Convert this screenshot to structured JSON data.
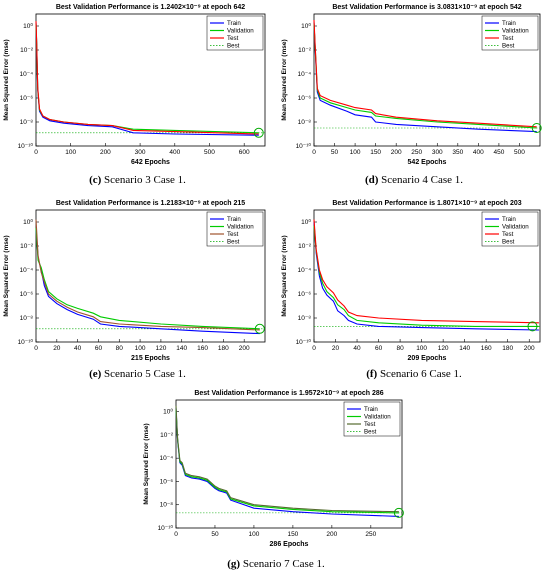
{
  "panels": [
    {
      "caption_letter": "(c)",
      "caption_text": " Scenario 3 Case 1.",
      "chart": {
        "type": "line",
        "title": "Best Validation Performance is 1.2402×10⁻⁹ at epoch 642",
        "xlabel": "642 Epochs",
        "ylabel": "Mean Squared Error  (mse)",
        "xlim": [
          0,
          660
        ],
        "xticks": [
          0,
          100,
          200,
          300,
          400,
          500,
          600
        ],
        "ylim_exp": [
          -10,
          1
        ],
        "ytick_exps": [
          0,
          -2,
          -4,
          -6,
          -8,
          -10
        ],
        "grid": false,
        "legend": "top-right",
        "best_point": {
          "x": 642,
          "y_exp": -8.9
        },
        "series": [
          {
            "name": "Train",
            "color": "#0000ff",
            "x": [
              0,
              2,
              5,
              10,
              20,
              40,
              80,
              150,
              220,
              280,
              400,
              642
            ],
            "y_exp": [
              0.3,
              -1.6,
              -5.3,
              -7.1,
              -7.6,
              -7.9,
              -8.1,
              -8.3,
              -8.4,
              -8.9,
              -9.0,
              -9.1
            ]
          },
          {
            "name": "Validation",
            "color": "#00cc00",
            "x": [
              0,
              2,
              5,
              10,
              20,
              40,
              80,
              150,
              220,
              280,
              400,
              642
            ],
            "y_exp": [
              0.2,
              -1.5,
              -5.2,
              -7.0,
              -7.5,
              -7.8,
              -8.0,
              -8.2,
              -8.3,
              -8.6,
              -8.7,
              -8.9
            ]
          },
          {
            "name": "Test",
            "color": "#ff0000",
            "x": [
              0,
              2,
              5,
              10,
              20,
              40,
              80,
              150,
              220,
              280,
              400,
              642
            ],
            "y_exp": [
              0.4,
              -1.4,
              -5.1,
              -6.9,
              -7.5,
              -7.8,
              -8.0,
              -8.2,
              -8.3,
              -8.7,
              -8.8,
              -9.0
            ]
          }
        ],
        "legend_entries": [
          "Train",
          "Validation",
          "Test",
          "Best"
        ]
      }
    },
    {
      "caption_letter": "(d)",
      "caption_text": " Scenario 4 Case 1.",
      "chart": {
        "type": "line",
        "title": "Best Validation Performance is 3.0831×10⁻⁹ at epoch 542",
        "xlabel": "542 Epochs",
        "ylabel": "Mean Squared Error  (mse)",
        "xlim": [
          0,
          550
        ],
        "xticks": [
          0,
          50,
          100,
          150,
          200,
          250,
          300,
          350,
          400,
          450,
          500
        ],
        "ylim_exp": [
          -10,
          1
        ],
        "ytick_exps": [
          0,
          -2,
          -4,
          -6,
          -8,
          -10
        ],
        "grid": false,
        "legend": "top-right",
        "best_point": {
          "x": 542,
          "y_exp": -8.5
        },
        "series": [
          {
            "name": "Train",
            "color": "#0000ff",
            "x": [
              0,
              3,
              8,
              15,
              40,
              80,
              100,
              140,
              150,
              200,
              300,
              400,
              542
            ],
            "y_exp": [
              0.3,
              -2.0,
              -5.5,
              -6.2,
              -6.6,
              -7.1,
              -7.4,
              -7.6,
              -8.0,
              -8.2,
              -8.4,
              -8.6,
              -8.8
            ]
          },
          {
            "name": "Validation",
            "color": "#00cc00",
            "x": [
              0,
              3,
              8,
              15,
              40,
              80,
              100,
              140,
              150,
              200,
              300,
              400,
              542
            ],
            "y_exp": [
              0.2,
              -1.8,
              -5.3,
              -6.0,
              -6.4,
              -6.8,
              -7.0,
              -7.2,
              -7.5,
              -7.7,
              -8.0,
              -8.2,
              -8.5
            ]
          },
          {
            "name": "Test",
            "color": "#ff0000",
            "x": [
              0,
              3,
              8,
              15,
              40,
              80,
              100,
              140,
              150,
              200,
              300,
              400,
              542
            ],
            "y_exp": [
              0.5,
              -1.7,
              -5.2,
              -5.8,
              -6.2,
              -6.6,
              -6.8,
              -7.0,
              -7.3,
              -7.6,
              -7.9,
              -8.1,
              -8.4
            ]
          }
        ],
        "legend_entries": [
          "Train",
          "Validation",
          "Test",
          "Best"
        ]
      }
    },
    {
      "caption_letter": "(e)",
      "caption_text": " Scenario 5 Case 1.",
      "chart": {
        "type": "line",
        "title": "Best Validation Performance is 1.2183×10⁻⁹ at epoch 215",
        "xlabel": "215 Epochs",
        "ylabel": "Mean Squared Error  (mse)",
        "xlim": [
          0,
          220
        ],
        "xticks": [
          0,
          20,
          40,
          60,
          80,
          100,
          120,
          140,
          160,
          180,
          200
        ],
        "ylim_exp": [
          -10,
          1
        ],
        "ytick_exps": [
          0,
          -2,
          -4,
          -6,
          -8,
          -10
        ],
        "grid": false,
        "legend": "top-right",
        "best_point": {
          "x": 215,
          "y_exp": -8.9
        },
        "series": [
          {
            "name": "Train",
            "color": "#0000ff",
            "x": [
              0,
              2,
              5,
              8,
              12,
              20,
              30,
              40,
              55,
              62,
              80,
              120,
              160,
              215
            ],
            "y_exp": [
              -0.5,
              -3.0,
              -4.0,
              -5.3,
              -6.2,
              -6.8,
              -7.3,
              -7.7,
              -8.1,
              -8.5,
              -8.7,
              -8.9,
              -9.1,
              -9.3
            ]
          },
          {
            "name": "Validation",
            "color": "#00cc00",
            "x": [
              0,
              2,
              5,
              8,
              12,
              20,
              30,
              40,
              55,
              62,
              80,
              120,
              160,
              215
            ],
            "y_exp": [
              -0.5,
              -3.2,
              -3.8,
              -4.8,
              -5.8,
              -6.4,
              -6.9,
              -7.2,
              -7.6,
              -7.9,
              -8.2,
              -8.5,
              -8.7,
              -8.9
            ]
          },
          {
            "name": "Test",
            "color": "#a0522d",
            "x": [
              0,
              2,
              5,
              8,
              12,
              20,
              30,
              40,
              55,
              62,
              80,
              120,
              160,
              215
            ],
            "y_exp": [
              0.2,
              -2.8,
              -4.2,
              -5.0,
              -6.0,
              -6.6,
              -7.1,
              -7.5,
              -7.9,
              -8.3,
              -8.5,
              -8.7,
              -8.8,
              -9.0
            ]
          }
        ],
        "legend_entries": [
          "Train",
          "Validation",
          "Test",
          "Best"
        ]
      }
    },
    {
      "caption_letter": "(f)",
      "caption_text": " Scenario 6 Case 1.",
      "chart": {
        "type": "line",
        "title": "Best Validation Performance is 1.8071×10⁻⁹ at epoch 203",
        "xlabel": "209 Epochs",
        "ylabel": "Mean Squared Error  (mse)",
        "xlim": [
          0,
          210
        ],
        "xticks": [
          0,
          20,
          40,
          60,
          80,
          100,
          120,
          140,
          160,
          180,
          200
        ],
        "ylim_exp": [
          -10,
          1
        ],
        "ytick_exps": [
          0,
          -2,
          -4,
          -6,
          -8,
          -10
        ],
        "grid": false,
        "legend": "top-right",
        "best_point": {
          "x": 203,
          "y_exp": -8.7
        },
        "series": [
          {
            "name": "Train",
            "color": "#0000ff",
            "x": [
              0,
              2,
              5,
              8,
              12,
              18,
              22,
              28,
              32,
              40,
              60,
              100,
              150,
              209
            ],
            "y_exp": [
              0.0,
              -2.6,
              -4.5,
              -5.5,
              -6.1,
              -6.6,
              -7.4,
              -7.8,
              -8.2,
              -8.5,
              -8.7,
              -8.8,
              -8.9,
              -9.0
            ]
          },
          {
            "name": "Validation",
            "color": "#00cc00",
            "x": [
              0,
              2,
              5,
              8,
              12,
              18,
              22,
              28,
              32,
              40,
              60,
              100,
              150,
              209
            ],
            "y_exp": [
              -0.3,
              -2.4,
              -4.2,
              -5.1,
              -5.8,
              -6.3,
              -6.9,
              -7.3,
              -7.8,
              -8.2,
              -8.4,
              -8.6,
              -8.7,
              -8.7
            ]
          },
          {
            "name": "Test",
            "color": "#ff0000",
            "x": [
              0,
              2,
              5,
              8,
              12,
              18,
              22,
              28,
              32,
              40,
              60,
              100,
              150,
              209
            ],
            "y_exp": [
              0.2,
              -2.3,
              -4.0,
              -4.8,
              -5.4,
              -5.9,
              -6.5,
              -7.0,
              -7.5,
              -7.8,
              -8.0,
              -8.2,
              -8.3,
              -8.4
            ]
          }
        ],
        "legend_entries": [
          "Train",
          "Validation",
          "Test",
          "Best"
        ]
      }
    },
    {
      "caption_letter": "(g)",
      "caption_text": " Scenario 7 Case 1.",
      "chart": {
        "type": "line",
        "title": "Best Validation Performance is 1.9572×10⁻⁹ at epoch 286",
        "xlabel": "286 Epochs",
        "ylabel": "Mean Squared Error  (mse)",
        "xlim": [
          0,
          290
        ],
        "xticks": [
          0,
          50,
          100,
          150,
          200,
          250
        ],
        "ylim_exp": [
          -10,
          1
        ],
        "ytick_exps": [
          0,
          -2,
          -4,
          -6,
          -8,
          -10
        ],
        "grid": false,
        "legend": "top-right",
        "best_point": {
          "x": 286,
          "y_exp": -8.7
        },
        "series": [
          {
            "name": "Train",
            "color": "#0000ff",
            "x": [
              0,
              2,
              5,
              8,
              12,
              20,
              30,
              40,
              50,
              55,
              60,
              65,
              70,
              100,
              150,
              200,
              286
            ],
            "y_exp": [
              0.3,
              -2.5,
              -4.4,
              -4.6,
              -5.5,
              -5.7,
              -5.8,
              -6.0,
              -6.6,
              -6.8,
              -6.9,
              -7.0,
              -7.6,
              -8.3,
              -8.6,
              -8.8,
              -9.0
            ]
          },
          {
            "name": "Validation",
            "color": "#00cc00",
            "x": [
              0,
              2,
              5,
              8,
              12,
              20,
              30,
              40,
              50,
              55,
              60,
              65,
              70,
              100,
              150,
              200,
              286
            ],
            "y_exp": [
              0.2,
              -2.4,
              -4.3,
              -4.5,
              -5.4,
              -5.6,
              -5.7,
              -5.9,
              -6.5,
              -6.7,
              -6.8,
              -6.9,
              -7.5,
              -8.1,
              -8.4,
              -8.6,
              -8.7
            ]
          },
          {
            "name": "Test",
            "color": "#556b2f",
            "x": [
              0,
              2,
              5,
              8,
              12,
              20,
              30,
              40,
              50,
              55,
              60,
              65,
              70,
              100,
              150,
              200,
              286
            ],
            "y_exp": [
              0.5,
              -2.3,
              -4.2,
              -4.4,
              -5.3,
              -5.5,
              -5.6,
              -5.8,
              -6.4,
              -6.6,
              -6.7,
              -6.8,
              -7.4,
              -8.0,
              -8.3,
              -8.5,
              -8.6
            ]
          }
        ],
        "legend_entries": [
          "Train",
          "Validation",
          "Test",
          "Best"
        ]
      }
    }
  ]
}
